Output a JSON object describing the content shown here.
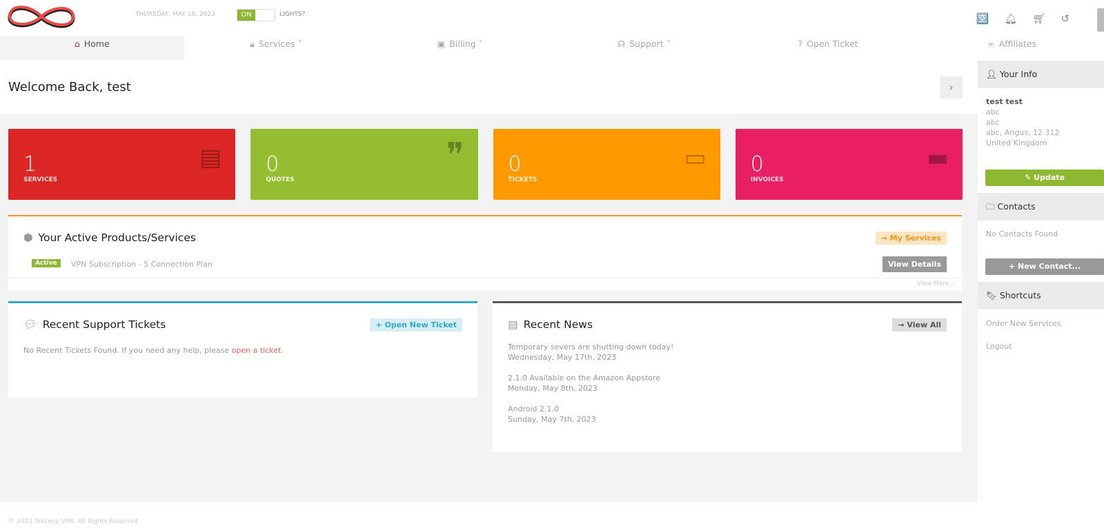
{
  "header": {
    "date": "THURSDAY, MAY 18, 2023",
    "toggle_on": "ON",
    "lights_label": "LIGHTS?",
    "icons": [
      "translate-icon",
      "bell-icon",
      "cart-icon",
      "undo-icon"
    ]
  },
  "nav": [
    {
      "label": "Home",
      "icon": "home-icon",
      "active": true
    },
    {
      "label": "Services",
      "icon": "lock-icon"
    },
    {
      "label": "Billing",
      "icon": "money-icon"
    },
    {
      "label": "Support",
      "icon": "headset-icon"
    },
    {
      "label": "Open Ticket",
      "icon": "question-icon"
    },
    {
      "label": "Affiliates",
      "icon": "handshake-icon"
    }
  ],
  "welcome": "Welcome Back, test",
  "stats": [
    {
      "value": "1",
      "label": "SERVICES",
      "color": "#dc2626"
    },
    {
      "value": "0",
      "label": "QUOTES",
      "color": "#95bd32"
    },
    {
      "value": "0",
      "label": "TICKETS",
      "color": "#ff9900"
    },
    {
      "value": "0",
      "label": "INVOICES",
      "color": "#ea1f63"
    }
  ],
  "products": {
    "title": "Your Active Products/Services",
    "my_services": "My Services",
    "status": "Active",
    "name": "VPN Subscription - 5 Connection Plan",
    "view_details": "View Details",
    "view_more": "View More..."
  },
  "tickets": {
    "title": "Recent Support Tickets",
    "open_new": "Open New Ticket",
    "empty": "No Recent Tickets Found. If you need any help, please ",
    "link": "open a ticket",
    "end": "."
  },
  "news": {
    "title": "Recent News",
    "view_all": "View All",
    "items": [
      {
        "title": "Temporary severs are shutting down today!",
        "date": "Wednesday, May 17th, 2023"
      },
      {
        "title": "2.1.0 Available on the Amazon Appstore",
        "date": "Monday, May 8th, 2023"
      },
      {
        "title": "Android 2.1.0",
        "date": "Sunday, May 7th, 2023"
      }
    ]
  },
  "sidebar": {
    "your_info": "Your Info",
    "name": "test test",
    "lines": [
      "abc",
      "abc",
      "abc, Angus, 12 312",
      "United Kingdom"
    ],
    "update": "Update",
    "contacts": "Contacts",
    "no_contacts": "No Contacts Found",
    "new_contact": "New Contact...",
    "shortcuts": "Shortcuts",
    "links": [
      "Order New Services",
      "Logout"
    ]
  },
  "footer": "© 2023 TekLoop VPN. All Rights Reserved"
}
